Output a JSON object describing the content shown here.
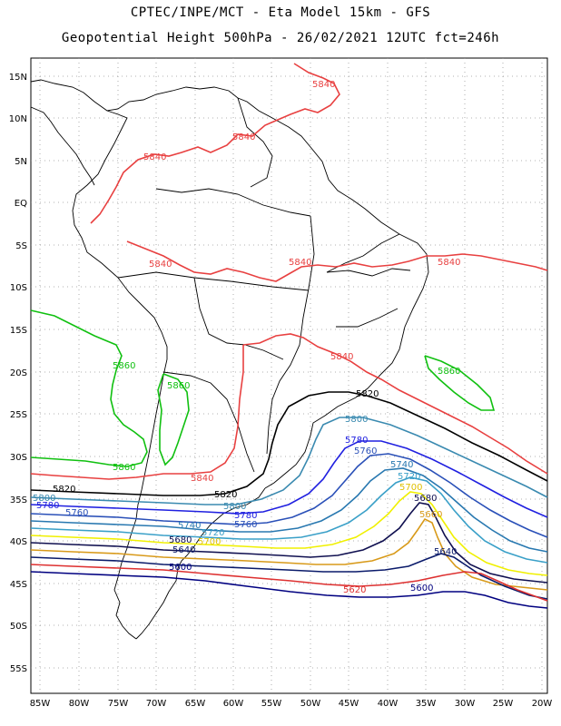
{
  "header": {
    "line1": "CPTEC/INPE/MCT  -   Eta Model 15km  -  GFS",
    "line2": "Geopotential Height 500hPa  -  26/02/2021  12UTC  fct=246h"
  },
  "axes": {
    "lat_ticks": [
      "15N",
      "10N",
      "5N",
      "EQ",
      "5S",
      "10S",
      "15S",
      "20S",
      "25S",
      "30S",
      "35S",
      "40S",
      "45S",
      "50S",
      "55S"
    ],
    "lon_ticks": [
      "85W",
      "80W",
      "75W",
      "70W",
      "65W",
      "60W",
      "55W",
      "50W",
      "45W",
      "40W",
      "35W",
      "30W",
      "25W",
      "20W"
    ]
  },
  "colors": {
    "c5600": "#000080",
    "c5620": "#dd3030",
    "c5640": "#0a1a6a",
    "c5660": "#d89a1a",
    "c5680": "#101050",
    "c5700": "#f0f000",
    "c5720": "#3aa0c8",
    "c5740": "#2878b0",
    "c5760": "#2a50b8",
    "c5780": "#2020e0",
    "c5800": "#3a8ab0",
    "c5820": "#000000",
    "c5840": "#e84040",
    "c5860": "#10c010",
    "coast": "#000000"
  },
  "contour_labels": {
    "l5840_a": "5840",
    "l5840_b": "5840",
    "l5840_c": "5840",
    "l5840_d": "5840",
    "l5840_e": "5840",
    "l5840_f": "5840",
    "l5840_g": "5840",
    "l5840_h": "5840",
    "l5860_a": "5860",
    "l5860_b": "5860",
    "l5860_c": "5860",
    "l5860_d": "5860",
    "l5820_a": "5820",
    "l5820_b": "5820",
    "l5820_c": "5820",
    "l5800_a": "5800",
    "l5800_b": "5800",
    "l5800_c": "5800",
    "l5780_a": "5780",
    "l5780_b": "5780",
    "l5780_c": "5780",
    "l5760_a": "5760",
    "l5760_b": "5760",
    "l5760_c": "5760",
    "l5740_a": "5740",
    "l5740_b": "5740",
    "l5720_a": "5720",
    "l5720_b": "5720",
    "l5700_a": "5700",
    "l5700_b": "5700",
    "l5680_a": "5680",
    "l5680_b": "5680",
    "l5660_a": "5660",
    "l5640_a": "5640",
    "l5640_b": "5640",
    "l5620_a": "5620",
    "l5600_a": "5600",
    "l5600_b": "5600"
  }
}
